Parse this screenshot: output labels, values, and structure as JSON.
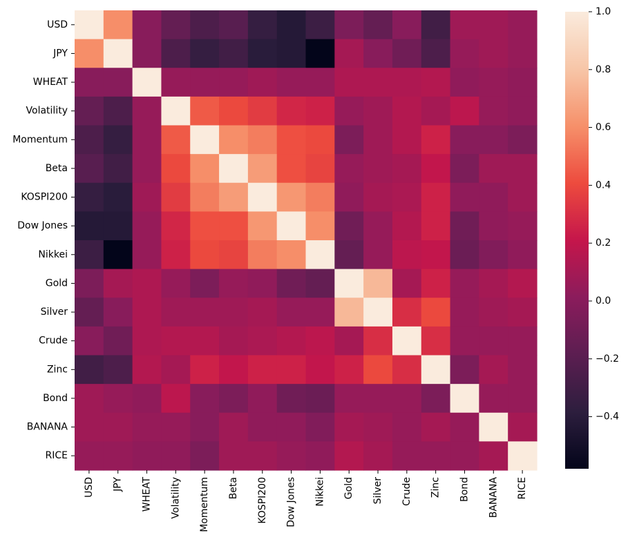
{
  "chart_data": {
    "type": "heatmap",
    "title": "",
    "xlabel": "",
    "ylabel": "",
    "labels": [
      "USD",
      "JPY",
      "WHEAT",
      "Volatility",
      "Momentum",
      "Beta",
      "KOSPI200",
      "Dow Jones",
      "Nikkei",
      "Gold",
      "Silver",
      "Crude",
      "Zinc",
      "Bond",
      "BANANA",
      "RICE"
    ],
    "matrix": [
      [
        1.0,
        0.6,
        0.0,
        -0.15,
        -0.25,
        -0.2,
        -0.35,
        -0.42,
        -0.32,
        -0.05,
        -0.15,
        0.0,
        -0.3,
        0.08,
        0.08,
        0.05
      ],
      [
        0.6,
        1.0,
        0.0,
        -0.25,
        -0.35,
        -0.3,
        -0.4,
        -0.42,
        -0.58,
        0.1,
        0.0,
        -0.1,
        -0.25,
        0.05,
        0.08,
        0.05
      ],
      [
        0.0,
        0.0,
        1.0,
        0.05,
        0.05,
        0.05,
        0.08,
        0.05,
        0.05,
        0.13,
        0.13,
        0.13,
        0.15,
        0.03,
        0.05,
        0.03
      ],
      [
        -0.15,
        -0.25,
        0.05,
        1.0,
        0.45,
        0.4,
        0.35,
        0.27,
        0.25,
        0.05,
        0.08,
        0.15,
        0.1,
        0.18,
        0.05,
        0.03
      ],
      [
        -0.25,
        -0.35,
        0.05,
        0.45,
        1.0,
        0.6,
        0.55,
        0.42,
        0.4,
        -0.05,
        0.08,
        0.15,
        0.25,
        0.0,
        0.0,
        -0.05
      ],
      [
        -0.2,
        -0.3,
        0.05,
        0.4,
        0.6,
        1.0,
        0.65,
        0.42,
        0.38,
        0.05,
        0.08,
        0.1,
        0.2,
        -0.05,
        0.08,
        0.08
      ],
      [
        -0.35,
        -0.4,
        0.08,
        0.35,
        0.55,
        0.65,
        1.0,
        0.63,
        0.55,
        0.03,
        0.1,
        0.12,
        0.25,
        0.03,
        0.03,
        0.08
      ],
      [
        -0.42,
        -0.42,
        0.05,
        0.27,
        0.42,
        0.42,
        0.63,
        1.0,
        0.6,
        -0.1,
        0.05,
        0.15,
        0.25,
        -0.1,
        0.03,
        0.05
      ],
      [
        -0.32,
        -0.58,
        0.05,
        0.25,
        0.4,
        0.38,
        0.55,
        0.6,
        1.0,
        -0.15,
        0.05,
        0.18,
        0.2,
        -0.12,
        -0.03,
        0.03
      ],
      [
        -0.05,
        0.1,
        0.13,
        0.05,
        -0.05,
        0.05,
        0.03,
        -0.1,
        -0.15,
        1.0,
        0.75,
        0.1,
        0.25,
        0.05,
        0.1,
        0.15
      ],
      [
        -0.15,
        0.0,
        0.13,
        0.08,
        0.08,
        0.08,
        0.1,
        0.05,
        0.05,
        0.75,
        1.0,
        0.3,
        0.4,
        0.05,
        0.08,
        0.1
      ],
      [
        0.0,
        -0.1,
        0.13,
        0.15,
        0.15,
        0.1,
        0.12,
        0.15,
        0.18,
        0.1,
        0.3,
        1.0,
        0.3,
        0.05,
        0.05,
        0.05
      ],
      [
        -0.3,
        -0.25,
        0.15,
        0.1,
        0.25,
        0.2,
        0.25,
        0.25,
        0.2,
        0.25,
        0.4,
        0.3,
        1.0,
        -0.05,
        0.1,
        0.05
      ],
      [
        0.08,
        0.05,
        0.03,
        0.18,
        0.0,
        -0.05,
        0.03,
        -0.1,
        -0.12,
        0.05,
        0.05,
        0.05,
        -0.05,
        1.0,
        0.05,
        0.05
      ],
      [
        0.08,
        0.08,
        0.05,
        0.05,
        0.0,
        0.08,
        0.03,
        0.03,
        -0.03,
        0.1,
        0.08,
        0.05,
        0.1,
        0.05,
        1.0,
        0.1
      ],
      [
        0.05,
        0.05,
        0.03,
        0.03,
        -0.05,
        0.08,
        0.08,
        0.05,
        0.03,
        0.15,
        0.1,
        0.05,
        0.05,
        0.05,
        0.1,
        1.0
      ]
    ],
    "colorbar": {
      "vmin": -0.58,
      "vmax": 1.0,
      "ticks": [
        -0.4,
        -0.2,
        0.0,
        0.2,
        0.4,
        0.6,
        0.8,
        1.0
      ],
      "tick_labels": [
        "−0.4",
        "−0.2",
        "0.0",
        "0.2",
        "0.4",
        "0.6",
        "0.8",
        "1.0"
      ],
      "colormap": "rocket",
      "colormap_stops": [
        "#03051a",
        "#2d1e3e",
        "#5c1e51",
        "#8b1c5c",
        "#c5164b",
        "#ed4b3e",
        "#f6906a",
        "#f7c6a8",
        "#faebdd"
      ]
    },
    "grid": false,
    "legend": "colorbar-right"
  }
}
